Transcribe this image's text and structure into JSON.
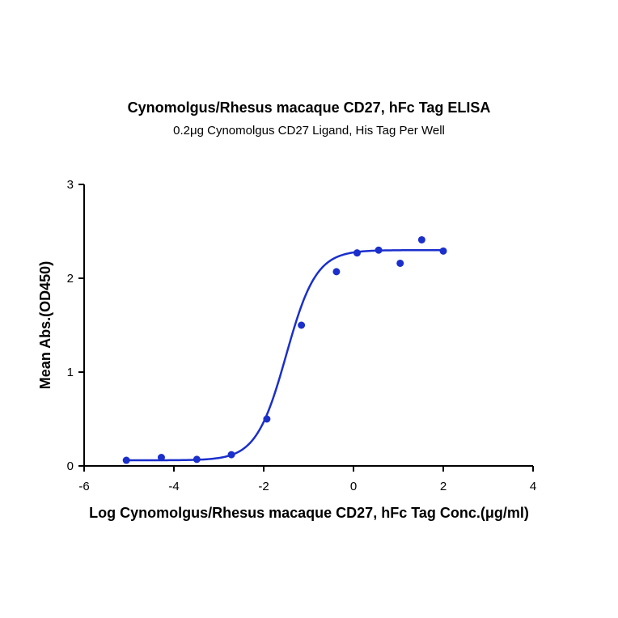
{
  "chart_data": {
    "type": "scatter",
    "title": "Cynomolgus/Rhesus macaque CD27, hFc Tag ELISA",
    "subtitle": "0.2μg Cynomolgus CD27 Ligand, His Tag Per Well",
    "xlabel": "Log Cynomolgus/Rhesus macaque CD27, hFc Tag Conc.(μg/ml)",
    "ylabel": "Mean Abs.(OD450)",
    "xlim": [
      -6,
      4
    ],
    "ylim": [
      0,
      3
    ],
    "xticks": [
      "-6",
      "-4",
      "-2",
      "0",
      "2",
      "4"
    ],
    "yticks": [
      "0",
      "1",
      "2",
      "3"
    ],
    "grid": false,
    "series": [
      {
        "points": [
          [
            -5.06,
            0.06
          ],
          [
            -4.28,
            0.09
          ],
          [
            -3.49,
            0.07
          ],
          [
            -2.72,
            0.12
          ],
          [
            -1.93,
            0.5
          ],
          [
            -1.16,
            1.5
          ],
          [
            -0.38,
            2.07
          ],
          [
            0.08,
            2.27
          ],
          [
            0.56,
            2.3
          ],
          [
            1.04,
            2.16
          ],
          [
            1.52,
            2.41
          ],
          [
            2.0,
            2.29
          ]
        ],
        "fit": {
          "bottom": 0.06,
          "top": 2.3,
          "logEC50": -1.5,
          "hillslope": 1.3
        },
        "color": "#1a2fcc"
      }
    ]
  }
}
